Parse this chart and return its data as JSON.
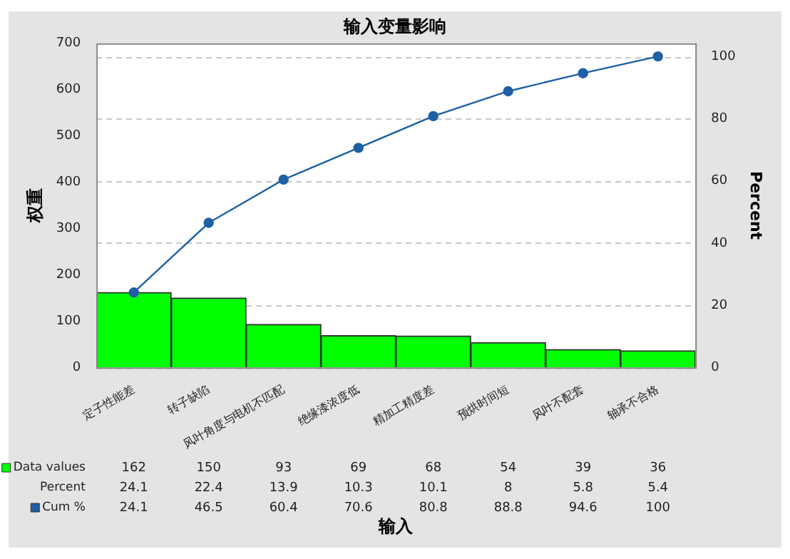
{
  "chart_data": {
    "type": "bar",
    "title": "输入变量影响",
    "xlabel": "输入",
    "ylabel": "权重",
    "y2label": "Percent",
    "categories": [
      "定子性能差",
      "转子缺陷",
      "风叶角度与电机不匹配",
      "绝缘漆浓度低",
      "精加工精度差",
      "预烘时间短",
      "风叶不配套",
      "轴承不合格"
    ],
    "series": [
      {
        "name": "Data values",
        "color": "#00ff00",
        "values": [
          162,
          150,
          93,
          69,
          68,
          54,
          39,
          36
        ]
      },
      {
        "name": "Cum %",
        "type": "line",
        "axis": "y2",
        "color": "#1f5fa6",
        "values": [
          24.1,
          46.5,
          60.4,
          70.6,
          80.8,
          88.8,
          94.6,
          100
        ]
      }
    ],
    "annotations": [
      "Percent",
      "24.1",
      "22.4",
      "13.9",
      "10.3",
      "10.1",
      "8",
      "5.8",
      "5.4"
    ],
    "legend": "bottom left",
    "ylim": [
      0,
      700
    ],
    "yticks": [
      0,
      100,
      200,
      300,
      400,
      500,
      600,
      700
    ],
    "y2lim": [
      0,
      104.2
    ],
    "y2ticks": [
      0,
      20,
      40,
      60,
      80,
      100
    ],
    "grid": true,
    "marker": "circle",
    "line_style": "solid",
    "data_labels": true
  }
}
